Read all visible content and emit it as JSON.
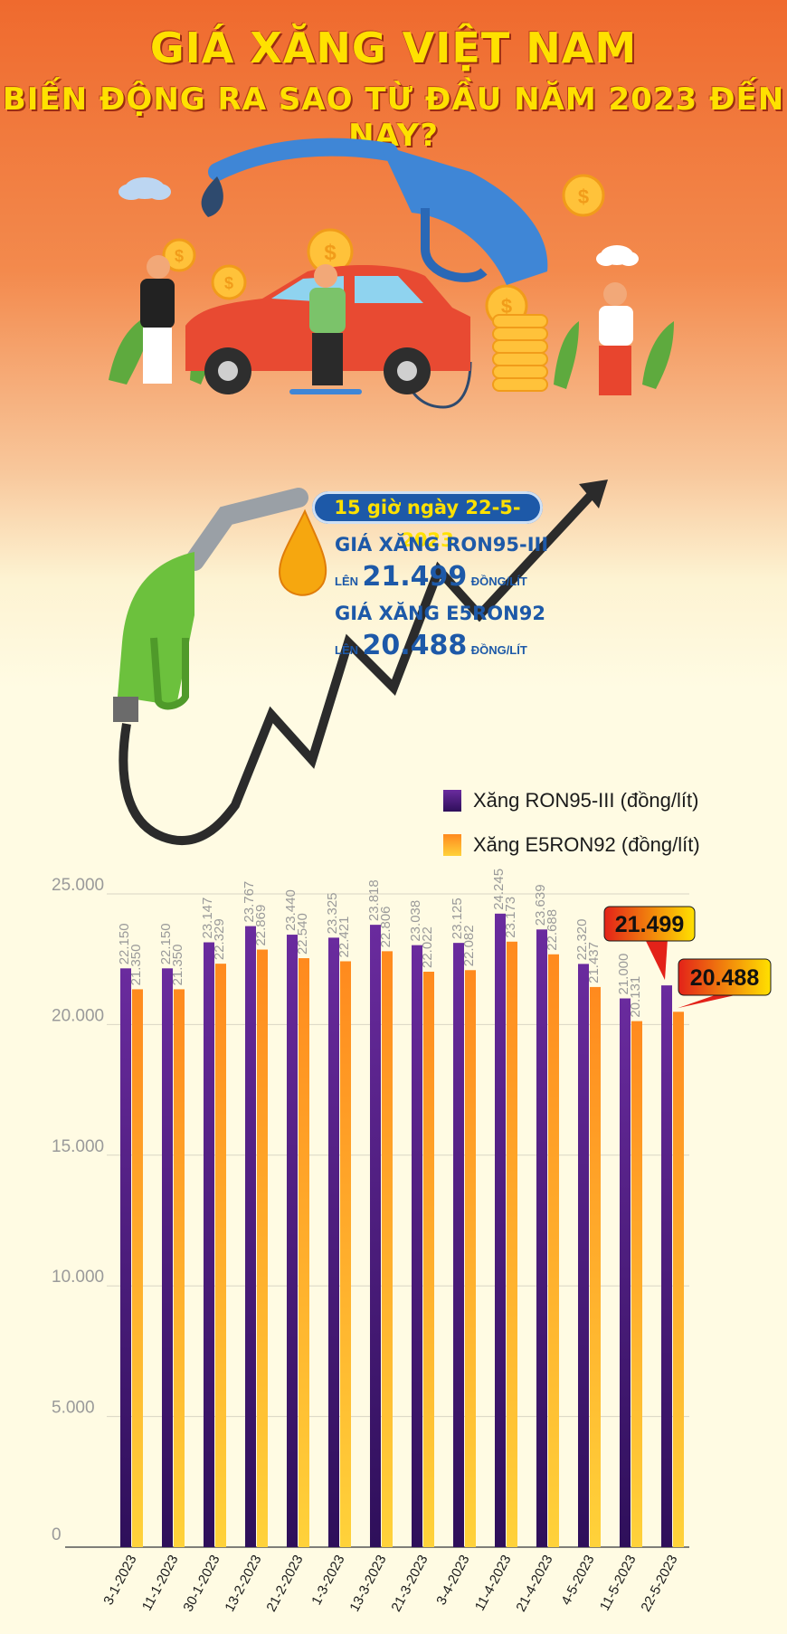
{
  "header": {
    "title_line1": "GIÁ XĂNG VIỆT NAM",
    "title_line2": "BIẾN ĐỘNG RA SAO TỪ ĐẦU NĂM 2023 ĐẾN NAY?"
  },
  "announcement": {
    "date_pill": "15 giờ ngày 22-5-2023",
    "ron95_label": "GIÁ XĂNG RON95-III",
    "ron95_prefix": "LÊN",
    "ron95_value": "21.499",
    "ron95_unit": "ĐỒNG/LÍT",
    "e5_label": "GIÁ XĂNG E5RON92",
    "e5_prefix": "LÊN",
    "e5_value": "20.488",
    "e5_unit": "ĐỒNG/LÍT"
  },
  "legend": {
    "ron95": "Xăng RON95-III (đồng/lít)",
    "e5": "Xăng E5RON92 (đồng/lít)"
  },
  "callouts": {
    "ron95_latest": "21.499",
    "e5_latest": "20.488"
  },
  "colors": {
    "ron95_top": "#6a2b9e",
    "ron95_bottom": "#2e0f5a",
    "e5_top": "#ff8a1e",
    "e5_bottom": "#ffd23a",
    "callout_red": "#e32219",
    "callout_yellow": "#ffe100",
    "label_gray": "#9a9a9a",
    "title_yellow": "#ffe100",
    "pill_blue": "#1d59a8"
  },
  "chart_data": {
    "type": "bar",
    "categories": [
      "3-1-2023",
      "11-1-2023",
      "30-1-2023",
      "13-2-2023",
      "21-2-2023",
      "1-3-2023",
      "13-3-2023",
      "21-3-2023",
      "3-4-2023",
      "11-4-2023",
      "21-4-2023",
      "4-5-2023",
      "11-5-2023",
      "22-5-2023"
    ],
    "series": [
      {
        "name": "Xăng RON95-III (đồng/lít)",
        "values": [
          22150,
          22150,
          23147,
          23767,
          23440,
          23325,
          23818,
          23038,
          23125,
          24245,
          23639,
          22320,
          21000,
          21499
        ],
        "labels": [
          "22.150",
          "22.150",
          "23.147",
          "23.767",
          "23.440",
          "23.325",
          "23.818",
          "23.038",
          "23.125",
          "24.245",
          "23.639",
          "22.320",
          "21.000",
          ""
        ]
      },
      {
        "name": "Xăng E5RON92 (đồng/lít)",
        "values": [
          21350,
          21350,
          22329,
          22869,
          22540,
          22421,
          22806,
          22022,
          22082,
          23173,
          22688,
          21437,
          20131,
          20488
        ],
        "labels": [
          "21.350",
          "21.350",
          "22.329",
          "22.869",
          "22.540",
          "22.421",
          "22.806",
          "22.022",
          "22.082",
          "23.173",
          "22.688",
          "21.437",
          "20.131",
          ""
        ]
      }
    ],
    "yticks": [
      "0",
      "5.000",
      "10.000",
      "15.000",
      "20.000",
      "25.000"
    ],
    "ylim": [
      0,
      25000
    ],
    "grid": true,
    "legend_position": "top-right"
  }
}
